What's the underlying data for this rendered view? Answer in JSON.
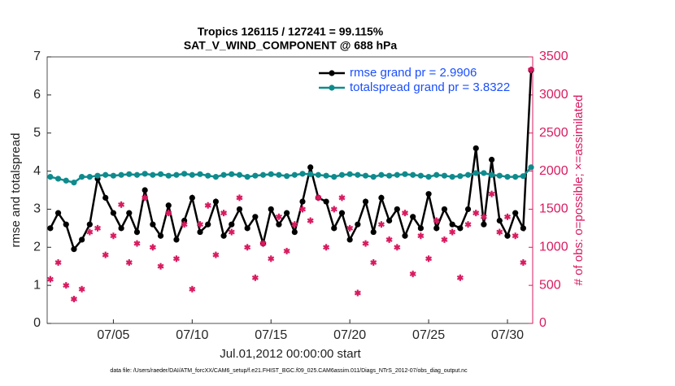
{
  "chart_data": {
    "type": "line",
    "title": "Tropics 126115 / 127241 = 99.115%",
    "subtitle": "SAT_V_WIND_COMPONENT @ 688 hPa",
    "xlabel": "Jul.01,2012 00:00:00 start",
    "ylabel": "rmse and totalspread",
    "y2label": "# of obs: o=possible; ×=assimilated",
    "footnote": "data file: /Users/raeder/DAI/ATM_forcXX/CAM6_setup/f.e21.FHIST_BGC.f09_025.CAM6assim.011/Diags_NTrS_2012-07/obs_diag_output.nc",
    "x": [
      1,
      1.5,
      2,
      2.5,
      3,
      3.5,
      4,
      4.5,
      5,
      5.5,
      6,
      6.5,
      7,
      7.5,
      8,
      8.5,
      9,
      9.5,
      10,
      10.5,
      11,
      11.5,
      12,
      12.5,
      13,
      13.5,
      14,
      14.5,
      15,
      15.5,
      16,
      16.5,
      17,
      17.5,
      18,
      18.5,
      19,
      19.5,
      20,
      20.5,
      21,
      21.5,
      22,
      22.5,
      23,
      23.5,
      24,
      24.5,
      25,
      25.5,
      26,
      26.5,
      27,
      27.5,
      28,
      28.5,
      29,
      29.5,
      30,
      30.5,
      31,
      31.5
    ],
    "xlim": [
      0.8,
      31.6
    ],
    "xticks": [
      {
        "value": 5,
        "label": "07/05"
      },
      {
        "value": 10,
        "label": "07/10"
      },
      {
        "value": 15,
        "label": "07/15"
      },
      {
        "value": 20,
        "label": "07/20"
      },
      {
        "value": 25,
        "label": "07/25"
      },
      {
        "value": 30,
        "label": "07/30"
      }
    ],
    "ylim": [
      0,
      7
    ],
    "yticks": [
      0,
      1,
      2,
      3,
      4,
      5,
      6,
      7
    ],
    "y2lim": [
      0,
      3500
    ],
    "y2ticks": [
      0,
      500,
      1000,
      1500,
      2000,
      2500,
      3000,
      3500
    ],
    "legend": "upper right",
    "series": [
      {
        "name": "rmse grand pr = 2.9906",
        "color": "#000000",
        "mode": "lines+markers",
        "values": [
          2.5,
          2.9,
          2.6,
          1.95,
          2.2,
          2.6,
          3.8,
          3.3,
          2.9,
          2.5,
          2.9,
          2.4,
          3.5,
          2.6,
          2.3,
          3.1,
          2.2,
          2.7,
          3.3,
          2.4,
          2.6,
          3.2,
          2.3,
          2.6,
          3.0,
          2.5,
          2.8,
          2.1,
          3.0,
          2.6,
          2.9,
          2.4,
          3.2,
          4.1,
          3.3,
          3.2,
          2.5,
          2.9,
          2.2,
          2.6,
          3.2,
          2.4,
          3.3,
          2.7,
          3.0,
          2.3,
          2.8,
          2.5,
          3.4,
          2.5,
          3.0,
          2.6,
          2.5,
          3.0,
          4.6,
          2.6,
          4.3,
          2.7,
          2.3,
          2.9,
          2.5,
          6.65
        ]
      },
      {
        "name": "totalspread grand pr = 3.8322",
        "color": "#0f8b8d",
        "mode": "lines+markers",
        "values": [
          3.85,
          3.8,
          3.75,
          3.7,
          3.85,
          3.85,
          3.88,
          3.9,
          3.88,
          3.9,
          3.92,
          3.9,
          3.93,
          3.9,
          3.92,
          3.88,
          3.9,
          3.93,
          3.9,
          3.92,
          3.88,
          3.85,
          3.9,
          3.92,
          3.9,
          3.85,
          3.88,
          3.9,
          3.92,
          3.9,
          3.87,
          3.9,
          3.93,
          3.92,
          3.9,
          3.88,
          3.85,
          3.9,
          3.92,
          3.9,
          3.88,
          3.85,
          3.9,
          3.88,
          3.9,
          3.92,
          3.9,
          3.88,
          3.85,
          3.9,
          3.88,
          3.85,
          3.87,
          3.9,
          3.95,
          3.95,
          3.9,
          3.88,
          3.85,
          3.85,
          3.87,
          4.1
        ]
      },
      {
        "color": "#d81b60",
        "mode": "markers",
        "axis": "y2",
        "values": [
          580,
          800,
          500,
          320,
          450,
          1200,
          1250,
          900,
          1150,
          1560,
          800,
          1050,
          1650,
          1000,
          750,
          1450,
          850,
          1300,
          450,
          1300,
          1550,
          900,
          1450,
          1200,
          1650,
          1000,
          600,
          1050,
          850,
          1400,
          950,
          1300,
          1500,
          1350,
          1650,
          1000,
          1500,
          1650,
          1250,
          400,
          1050,
          800,
          1300,
          1100,
          1000,
          1450,
          650,
          1150,
          850,
          1350,
          1100,
          1200,
          600,
          1300,
          1450,
          1400,
          1700,
          1200,
          1400,
          1150,
          800,
          3330
        ]
      }
    ]
  }
}
